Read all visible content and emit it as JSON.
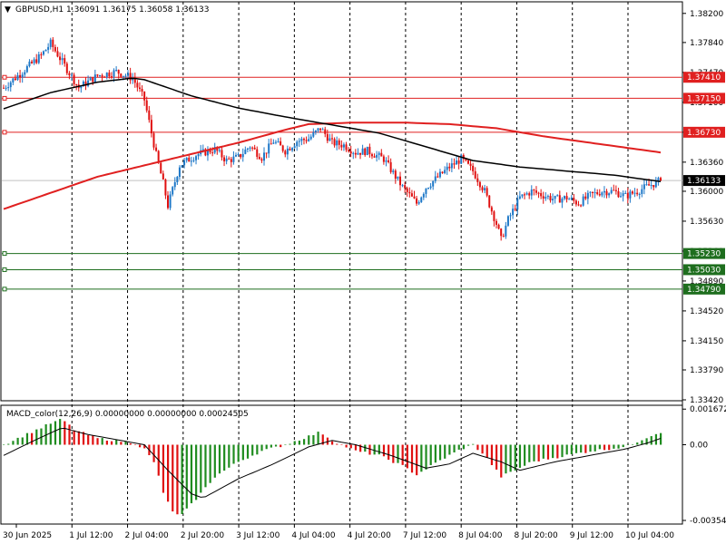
{
  "header": {
    "arrow": "▼",
    "symbol_info": "GBPUSD,H1  1.36091 1.36175 1.36058 1.36133"
  },
  "macd": {
    "label": "MACD_color(12,26,9) 0.00000000 0.00000000 0.00024505",
    "ticks": [
      {
        "v": 0.00167,
        "label": "0.0016729"
      },
      {
        "v": 0.0,
        "label": "0.00"
      },
      {
        "v": -0.00355,
        "label": "-0.003549"
      }
    ],
    "range": [
      -0.00355,
      0.00168
    ]
  },
  "colors": {
    "up_candle": "#1e78c8",
    "down_candle": "#e01010",
    "ma_fast": "#000000",
    "ma_slow": "#e02020",
    "resistance": "#e02020",
    "support": "#1e6e1e",
    "current_price": "#000000",
    "macd_up": "#1f8c1f",
    "macd_down": "#e01010",
    "macd_signal": "#000000"
  },
  "chart_data": {
    "type": "candlestick",
    "timeframe": "H1",
    "symbol": "GBPUSD",
    "ylim": [
      1.3342,
      1.3822
    ],
    "y_ticks": [
      "1.38200",
      "1.37840",
      "1.37470",
      "1.37100",
      "1.36730",
      "1.36360",
      "1.36000",
      "1.35630",
      "1.35260",
      "1.34890",
      "1.34520",
      "1.34150",
      "1.33790",
      "1.33420"
    ],
    "x_labels": [
      "30 Jun 2025",
      "1 Jul 12:00",
      "2 Jul 04:00",
      "2 Jul 20:00",
      "3 Jul 12:00",
      "4 Jul 04:00",
      "4 Jul 20:00",
      "7 Jul 12:00",
      "8 Jul 04:00",
      "8 Jul 20:00",
      "9 Jul 12:00",
      "10 Jul 04:00"
    ],
    "price_levels": [
      {
        "price": 1.3741,
        "label": "1.37410",
        "kind": "resistance"
      },
      {
        "price": 1.3715,
        "label": "1.37150",
        "kind": "resistance"
      },
      {
        "price": 1.3673,
        "label": "1.36730",
        "kind": "resistance"
      },
      {
        "price": 1.3523,
        "label": "1.35230",
        "kind": "support"
      },
      {
        "price": 1.3503,
        "label": "1.35030",
        "kind": "support"
      },
      {
        "price": 1.3479,
        "label": "1.34790",
        "kind": "support"
      }
    ],
    "current_price": {
      "price": 1.36133,
      "label": "1.36133"
    },
    "close_path": [
      [
        0,
        1.3728
      ],
      [
        8,
        1.3748
      ],
      [
        16,
        1.3768
      ],
      [
        20,
        1.3783
      ],
      [
        25,
        1.376
      ],
      [
        32,
        1.3728
      ],
      [
        40,
        1.3743
      ],
      [
        48,
        1.3748
      ],
      [
        55,
        1.374
      ],
      [
        60,
        1.3713
      ],
      [
        65,
        1.3645
      ],
      [
        68,
        1.361
      ],
      [
        70,
        1.3582
      ],
      [
        75,
        1.3632
      ],
      [
        82,
        1.3645
      ],
      [
        90,
        1.3652
      ],
      [
        95,
        1.3638
      ],
      [
        100,
        1.3642
      ],
      [
        105,
        1.3656
      ],
      [
        110,
        1.3642
      ],
      [
        115,
        1.3662
      ],
      [
        120,
        1.365
      ],
      [
        125,
        1.3662
      ],
      [
        130,
        1.3665
      ],
      [
        135,
        1.3678
      ],
      [
        140,
        1.366
      ],
      [
        145,
        1.3657
      ],
      [
        150,
        1.3648
      ],
      [
        155,
        1.365
      ],
      [
        162,
        1.364
      ],
      [
        170,
        1.3605
      ],
      [
        176,
        1.3585
      ],
      [
        180,
        1.3605
      ],
      [
        190,
        1.363
      ],
      [
        195,
        1.364
      ],
      [
        200,
        1.3625
      ],
      [
        205,
        1.36
      ],
      [
        210,
        1.356
      ],
      [
        212,
        1.354
      ],
      [
        215,
        1.3565
      ],
      [
        220,
        1.3592
      ],
      [
        225,
        1.36
      ],
      [
        235,
        1.359
      ],
      [
        240,
        1.3592
      ],
      [
        245,
        1.3585
      ],
      [
        250,
        1.3595
      ],
      [
        255,
        1.36
      ],
      [
        260,
        1.36
      ],
      [
        265,
        1.3594
      ],
      [
        270,
        1.36
      ],
      [
        275,
        1.3607
      ],
      [
        280,
        1.3613
      ]
    ],
    "ma_fast_path": [
      [
        0,
        1.3702
      ],
      [
        20,
        1.3722
      ],
      [
        40,
        1.3735
      ],
      [
        55,
        1.374
      ],
      [
        60,
        1.3738
      ],
      [
        80,
        1.3718
      ],
      [
        100,
        1.3703
      ],
      [
        120,
        1.3692
      ],
      [
        140,
        1.3682
      ],
      [
        160,
        1.3672
      ],
      [
        180,
        1.3655
      ],
      [
        200,
        1.3638
      ],
      [
        220,
        1.363
      ],
      [
        240,
        1.3625
      ],
      [
        260,
        1.362
      ],
      [
        280,
        1.3612
      ]
    ],
    "ma_slow_path": [
      [
        0,
        1.3578
      ],
      [
        20,
        1.3598
      ],
      [
        40,
        1.3618
      ],
      [
        60,
        1.3632
      ],
      [
        80,
        1.3646
      ],
      [
        100,
        1.366
      ],
      [
        120,
        1.3676
      ],
      [
        130,
        1.3683
      ],
      [
        150,
        1.3685
      ],
      [
        170,
        1.3685
      ],
      [
        190,
        1.3683
      ],
      [
        210,
        1.3678
      ],
      [
        230,
        1.3668
      ],
      [
        250,
        1.366
      ],
      [
        270,
        1.3652
      ],
      [
        280,
        1.3648
      ]
    ],
    "macd_hist_path": [
      [
        0,
        0.0
      ],
      [
        10,
        0.0005
      ],
      [
        20,
        0.001
      ],
      [
        25,
        0.0012
      ],
      [
        30,
        0.0007
      ],
      [
        40,
        0.0003
      ],
      [
        55,
        0.0001
      ],
      [
        60,
        -0.0002
      ],
      [
        65,
        -0.001
      ],
      [
        68,
        -0.0023
      ],
      [
        72,
        -0.0031
      ],
      [
        75,
        -0.0034
      ],
      [
        80,
        -0.0028
      ],
      [
        90,
        -0.0015
      ],
      [
        100,
        -0.0008
      ],
      [
        110,
        -0.0003
      ],
      [
        120,
        0.0
      ],
      [
        130,
        0.0004
      ],
      [
        135,
        0.0006
      ],
      [
        140,
        0.0002
      ],
      [
        150,
        -0.0003
      ],
      [
        160,
        -0.0005
      ],
      [
        170,
        -0.001
      ],
      [
        176,
        -0.0014
      ],
      [
        185,
        -0.0008
      ],
      [
        195,
        -0.0002
      ],
      [
        200,
        0.0
      ],
      [
        205,
        -0.0005
      ],
      [
        212,
        -0.0015
      ],
      [
        218,
        -0.0012
      ],
      [
        225,
        -0.0008
      ],
      [
        240,
        -0.0005
      ],
      [
        250,
        -0.0003
      ],
      [
        265,
        -0.0001
      ],
      [
        275,
        0.0004
      ],
      [
        280,
        0.0006
      ]
    ],
    "macd_signal_path": [
      [
        0,
        -0.0005
      ],
      [
        15,
        0.0003
      ],
      [
        25,
        0.0008
      ],
      [
        35,
        0.0005
      ],
      [
        50,
        0.0002
      ],
      [
        60,
        0.0
      ],
      [
        70,
        -0.0012
      ],
      [
        80,
        -0.0023
      ],
      [
        85,
        -0.0025
      ],
      [
        100,
        -0.0016
      ],
      [
        115,
        -0.0009
      ],
      [
        130,
        -0.0001
      ],
      [
        140,
        0.0002
      ],
      [
        150,
        0.0
      ],
      [
        165,
        -0.0005
      ],
      [
        180,
        -0.0011
      ],
      [
        190,
        -0.0009
      ],
      [
        200,
        -0.0004
      ],
      [
        212,
        -0.0008
      ],
      [
        220,
        -0.0012
      ],
      [
        235,
        -0.0008
      ],
      [
        250,
        -0.0005
      ],
      [
        265,
        -0.0002
      ],
      [
        275,
        0.0001
      ],
      [
        280,
        0.0003
      ]
    ],
    "candle_count": 281,
    "seed": 7
  }
}
